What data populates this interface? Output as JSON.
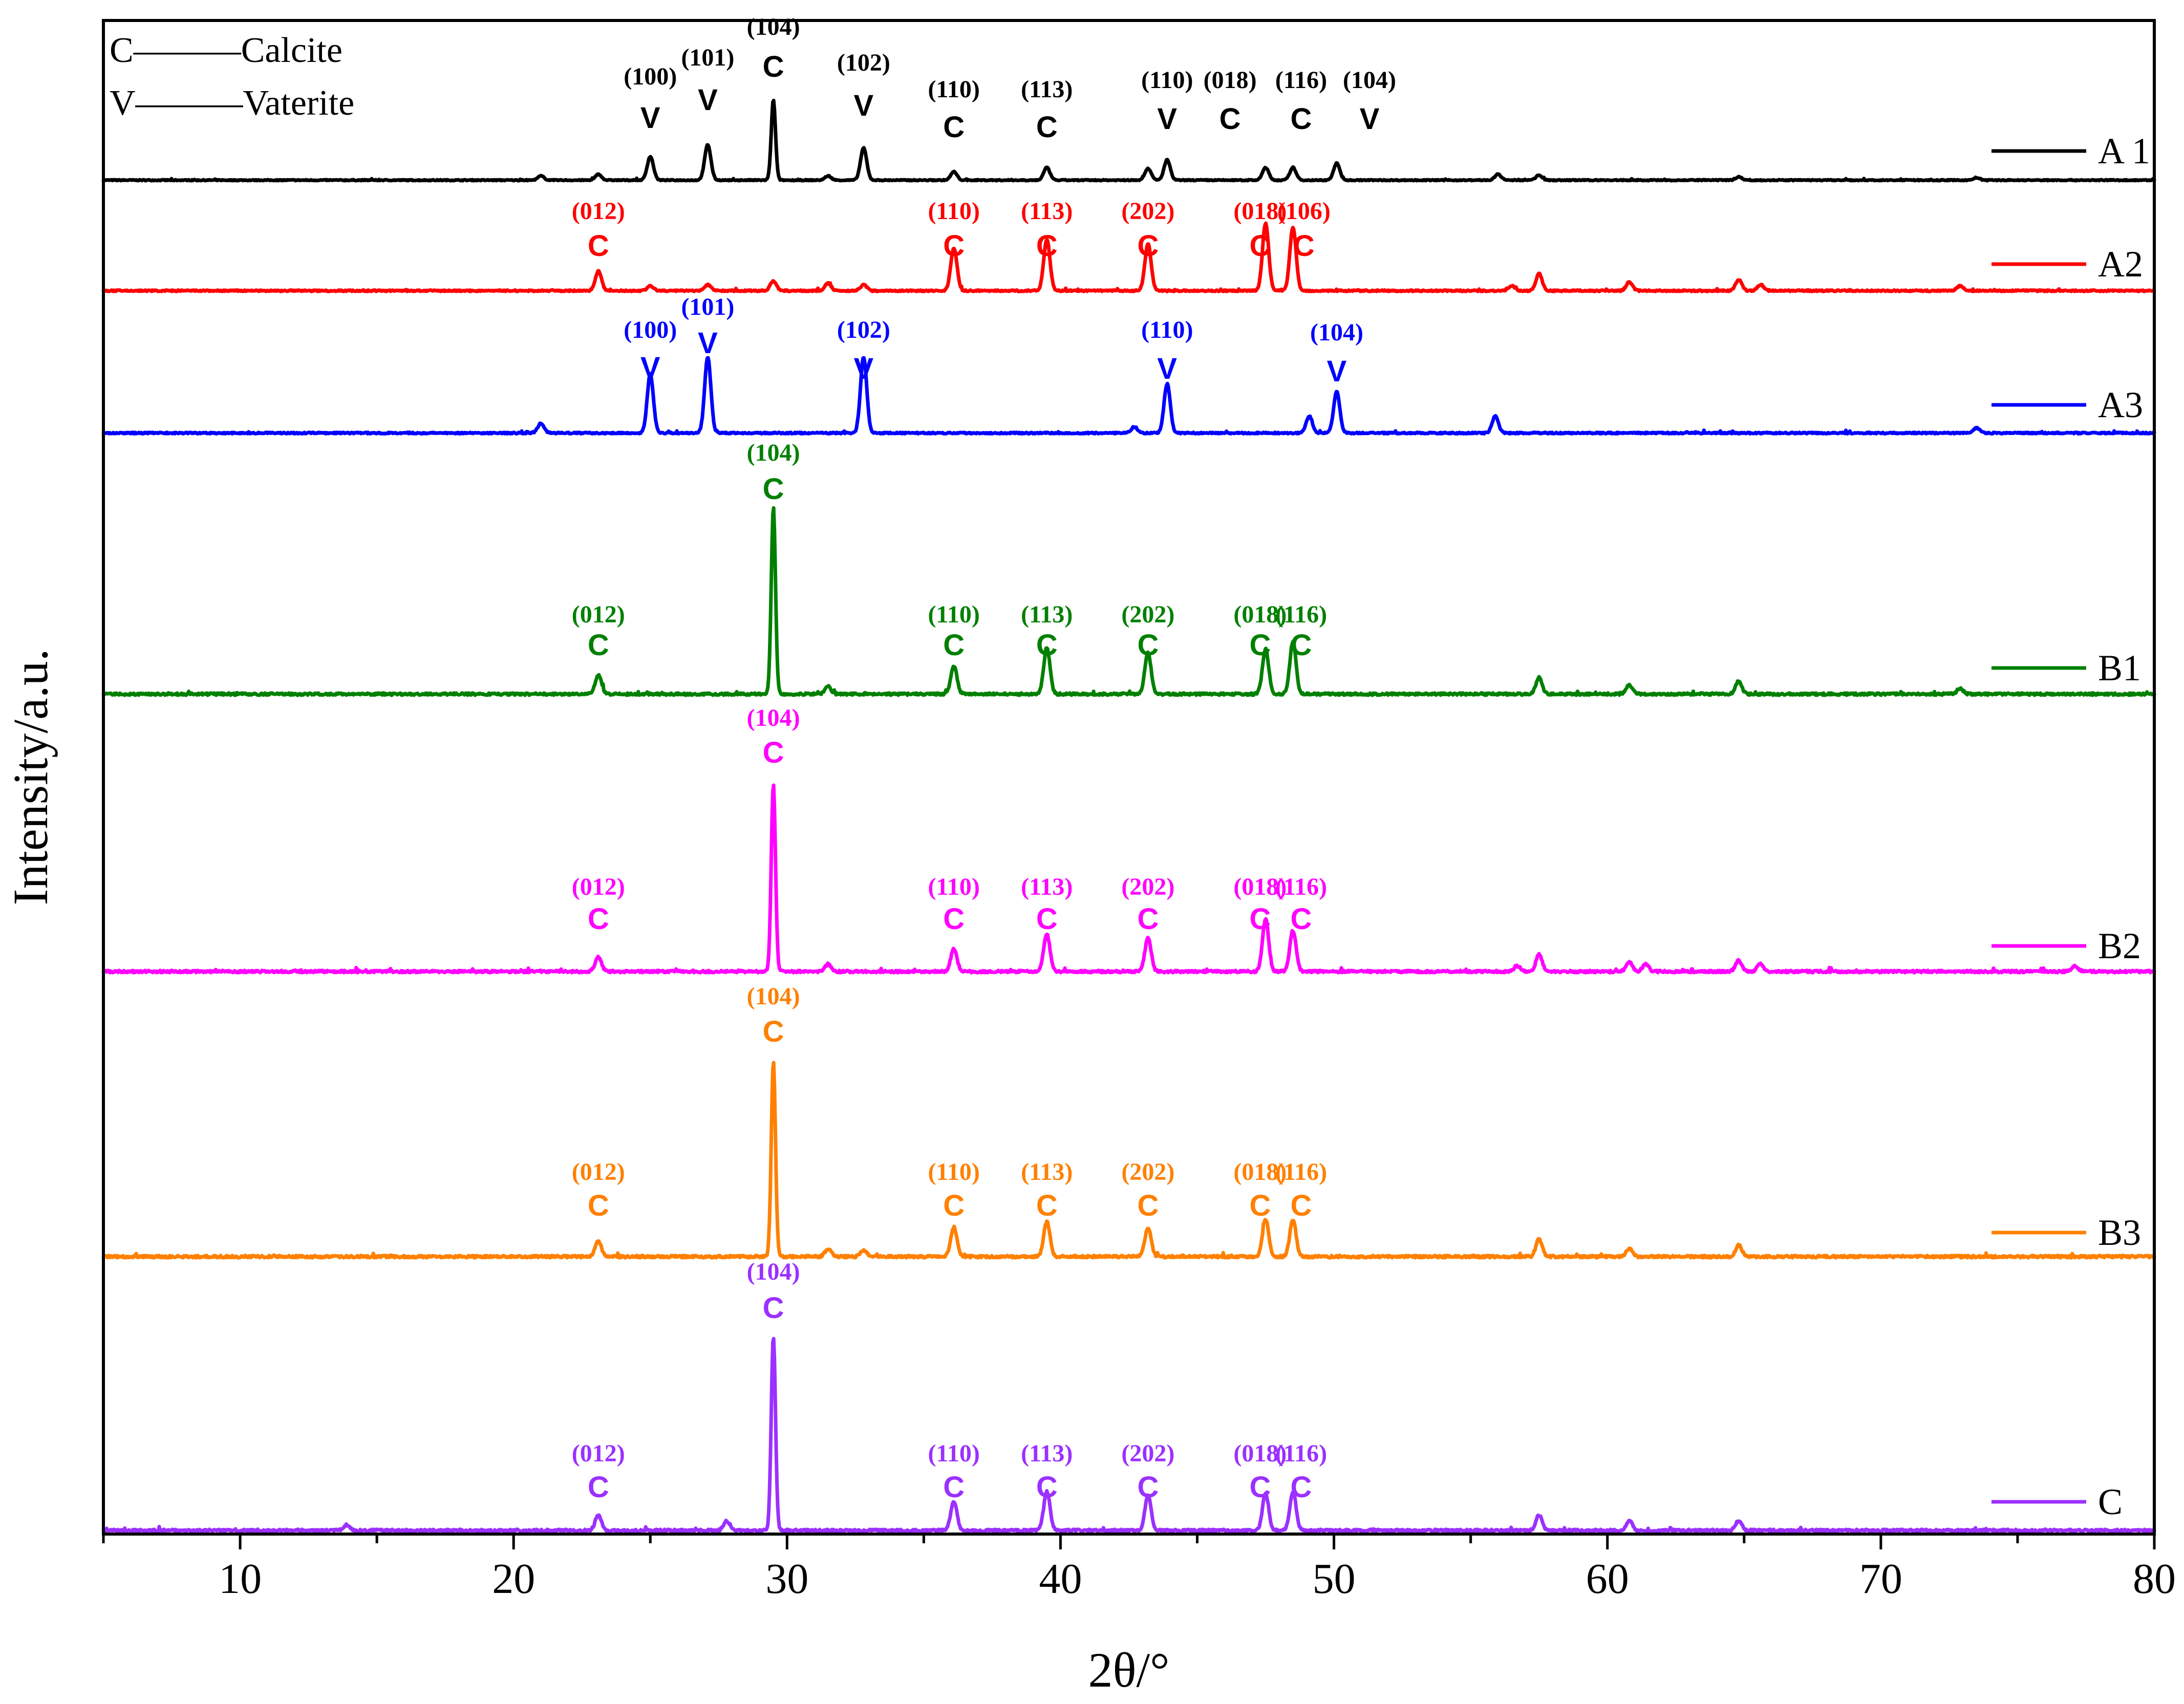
{
  "chart_data": {
    "type": "line",
    "title": "",
    "xlabel": "2θ/°",
    "ylabel": "Intensity/a.u.",
    "xlim": [
      5,
      80
    ],
    "x_ticks": [
      10,
      20,
      30,
      40,
      50,
      60,
      70,
      80
    ],
    "x_minor_step": 5,
    "y_ticks_shown": false,
    "phase_key": [
      {
        "symbol": "C",
        "name": "Calcite",
        "text": "C———Calcite"
      },
      {
        "symbol": "V",
        "name": "Vaterite",
        "text": "V———Vaterite"
      }
    ],
    "series": [
      {
        "name": "A 1",
        "color": "#000000",
        "peaks": [
          [
            21.0,
            0.05
          ],
          [
            23.1,
            0.07
          ],
          [
            25.0,
            0.28
          ],
          [
            27.1,
            0.42
          ],
          [
            29.5,
            0.95
          ],
          [
            31.5,
            0.05
          ],
          [
            32.8,
            0.38
          ],
          [
            36.1,
            0.1
          ],
          [
            39.5,
            0.15
          ],
          [
            43.2,
            0.14
          ],
          [
            43.9,
            0.24
          ],
          [
            47.5,
            0.15
          ],
          [
            48.5,
            0.15
          ],
          [
            50.1,
            0.2
          ],
          [
            56.0,
            0.07
          ],
          [
            57.5,
            0.06
          ],
          [
            64.8,
            0.04
          ],
          [
            73.5,
            0.03
          ]
        ],
        "annotations": [
          {
            "x": 25.0,
            "hkl": "(100)",
            "phase": "V"
          },
          {
            "x": 27.1,
            "hkl": "(101)",
            "phase": "V"
          },
          {
            "x": 29.5,
            "hkl": "(104)",
            "phase": "C"
          },
          {
            "x": 32.8,
            "hkl": "(102)",
            "phase": "V"
          },
          {
            "x": 36.1,
            "hkl": "(110)",
            "phase": "C"
          },
          {
            "x": 39.5,
            "hkl": "(113)",
            "phase": "C"
          },
          {
            "x": 43.9,
            "hkl": "(110)",
            "phase": "V"
          },
          {
            "x": 46.2,
            "hkl": "(018)",
            "phase": "C"
          },
          {
            "x": 48.8,
            "hkl": "(116)",
            "phase": "C"
          },
          {
            "x": 51.3,
            "hkl": "(104)",
            "phase": "V"
          }
        ]
      },
      {
        "name": "A2",
        "color": "#ff0000",
        "peaks": [
          [
            23.1,
            0.16
          ],
          [
            25.0,
            0.04
          ],
          [
            27.1,
            0.05
          ],
          [
            29.5,
            0.08
          ],
          [
            31.5,
            0.06
          ],
          [
            32.8,
            0.05
          ],
          [
            36.1,
            0.35
          ],
          [
            39.5,
            0.42
          ],
          [
            43.2,
            0.38
          ],
          [
            47.5,
            0.55
          ],
          [
            48.5,
            0.52
          ],
          [
            56.5,
            0.04
          ],
          [
            57.5,
            0.14
          ],
          [
            60.8,
            0.07
          ],
          [
            64.8,
            0.09
          ],
          [
            65.6,
            0.05
          ],
          [
            72.9,
            0.04
          ]
        ],
        "annotations": [
          {
            "x": 23.1,
            "hkl": "(012)",
            "phase": "C"
          },
          {
            "x": 36.1,
            "hkl": "(110)",
            "phase": "C"
          },
          {
            "x": 39.5,
            "hkl": "(113)",
            "phase": "C"
          },
          {
            "x": 43.2,
            "hkl": "(202)",
            "phase": "C"
          },
          {
            "x": 47.3,
            "hkl": "(018)",
            "phase": "C"
          },
          {
            "x": 48.9,
            "hkl": "(106)",
            "phase": "C"
          }
        ]
      },
      {
        "name": "A3",
        "color": "#0000ff",
        "peaks": [
          [
            21.0,
            0.08
          ],
          [
            25.0,
            0.48
          ],
          [
            27.1,
            0.62
          ],
          [
            32.8,
            0.62
          ],
          [
            42.7,
            0.05
          ],
          [
            43.9,
            0.4
          ],
          [
            49.1,
            0.14
          ],
          [
            50.1,
            0.34
          ],
          [
            55.9,
            0.14
          ],
          [
            73.5,
            0.04
          ]
        ],
        "annotations": [
          {
            "x": 25.0,
            "hkl": "(100)",
            "phase": "V"
          },
          {
            "x": 27.1,
            "hkl": "(101)",
            "phase": "V"
          },
          {
            "x": 32.8,
            "hkl": "(102)",
            "phase": "V"
          },
          {
            "x": 43.9,
            "hkl": "(110)",
            "phase": "V"
          },
          {
            "x": 50.1,
            "hkl": "(104)",
            "phase": "V"
          }
        ]
      },
      {
        "name": "B1",
        "color": "#008000",
        "peaks": [
          [
            23.1,
            0.1
          ],
          [
            29.5,
            1.0
          ],
          [
            31.5,
            0.04
          ],
          [
            36.1,
            0.15
          ],
          [
            39.5,
            0.25
          ],
          [
            43.2,
            0.22
          ],
          [
            47.5,
            0.24
          ],
          [
            48.5,
            0.28
          ],
          [
            57.5,
            0.09
          ],
          [
            60.8,
            0.05
          ],
          [
            64.8,
            0.07
          ],
          [
            72.9,
            0.03
          ]
        ],
        "annotations": [
          {
            "x": 23.1,
            "hkl": "(012)",
            "phase": "C"
          },
          {
            "x": 29.5,
            "hkl": "(104)",
            "phase": "C"
          },
          {
            "x": 36.1,
            "hkl": "(110)",
            "phase": "C"
          },
          {
            "x": 39.5,
            "hkl": "(113)",
            "phase": "C"
          },
          {
            "x": 43.2,
            "hkl": "(202)",
            "phase": "C"
          },
          {
            "x": 47.3,
            "hkl": "(018)",
            "phase": "C"
          },
          {
            "x": 48.8,
            "hkl": "(116)",
            "phase": "C"
          }
        ]
      },
      {
        "name": "B2",
        "color": "#ff00ff",
        "peaks": [
          [
            23.1,
            0.08
          ],
          [
            29.5,
            1.0
          ],
          [
            31.5,
            0.04
          ],
          [
            36.1,
            0.12
          ],
          [
            39.5,
            0.2
          ],
          [
            43.2,
            0.18
          ],
          [
            47.5,
            0.28
          ],
          [
            48.5,
            0.22
          ],
          [
            56.7,
            0.03
          ],
          [
            57.5,
            0.09
          ],
          [
            60.8,
            0.05
          ],
          [
            61.4,
            0.04
          ],
          [
            64.8,
            0.06
          ],
          [
            65.6,
            0.04
          ],
          [
            77.1,
            0.03
          ]
        ],
        "annotations": [
          {
            "x": 23.1,
            "hkl": "(012)",
            "phase": "C"
          },
          {
            "x": 29.5,
            "hkl": "(104)",
            "phase": "C"
          },
          {
            "x": 36.1,
            "hkl": "(110)",
            "phase": "C"
          },
          {
            "x": 39.5,
            "hkl": "(113)",
            "phase": "C"
          },
          {
            "x": 43.2,
            "hkl": "(202)",
            "phase": "C"
          },
          {
            "x": 47.3,
            "hkl": "(018)",
            "phase": "C"
          },
          {
            "x": 48.8,
            "hkl": "(116)",
            "phase": "C"
          }
        ]
      },
      {
        "name": "B3",
        "color": "#ff8000",
        "peaks": [
          [
            23.1,
            0.08
          ],
          [
            29.5,
            1.0
          ],
          [
            31.5,
            0.04
          ],
          [
            32.8,
            0.03
          ],
          [
            36.1,
            0.15
          ],
          [
            39.5,
            0.18
          ],
          [
            43.2,
            0.15
          ],
          [
            47.5,
            0.19
          ],
          [
            48.5,
            0.19
          ],
          [
            57.5,
            0.09
          ],
          [
            60.8,
            0.04
          ],
          [
            64.8,
            0.06
          ]
        ],
        "annotations": [
          {
            "x": 23.1,
            "hkl": "(012)",
            "phase": "C"
          },
          {
            "x": 29.5,
            "hkl": "(104)",
            "phase": "C"
          },
          {
            "x": 36.1,
            "hkl": "(110)",
            "phase": "C"
          },
          {
            "x": 39.5,
            "hkl": "(113)",
            "phase": "C"
          },
          {
            "x": 43.2,
            "hkl": "(202)",
            "phase": "C"
          },
          {
            "x": 47.3,
            "hkl": "(018)",
            "phase": "C"
          },
          {
            "x": 48.8,
            "hkl": "(116)",
            "phase": "C"
          }
        ]
      },
      {
        "name": "C",
        "color": "#9b30ff",
        "peaks": [
          [
            13.9,
            0.03
          ],
          [
            23.1,
            0.08
          ],
          [
            27.8,
            0.05
          ],
          [
            29.5,
            1.0
          ],
          [
            36.1,
            0.15
          ],
          [
            39.5,
            0.2
          ],
          [
            43.2,
            0.18
          ],
          [
            47.5,
            0.19
          ],
          [
            48.5,
            0.2
          ],
          [
            57.5,
            0.08
          ],
          [
            60.8,
            0.05
          ],
          [
            64.8,
            0.05
          ]
        ],
        "annotations": [
          {
            "x": 23.1,
            "hkl": "(012)",
            "phase": "C"
          },
          {
            "x": 29.5,
            "hkl": "(104)",
            "phase": "C"
          },
          {
            "x": 36.1,
            "hkl": "(110)",
            "phase": "C"
          },
          {
            "x": 39.5,
            "hkl": "(113)",
            "phase": "C"
          },
          {
            "x": 43.2,
            "hkl": "(202)",
            "phase": "C"
          },
          {
            "x": 47.3,
            "hkl": "(018)",
            "phase": "C"
          },
          {
            "x": 48.8,
            "hkl": "(116)",
            "phase": "C"
          }
        ]
      }
    ]
  }
}
